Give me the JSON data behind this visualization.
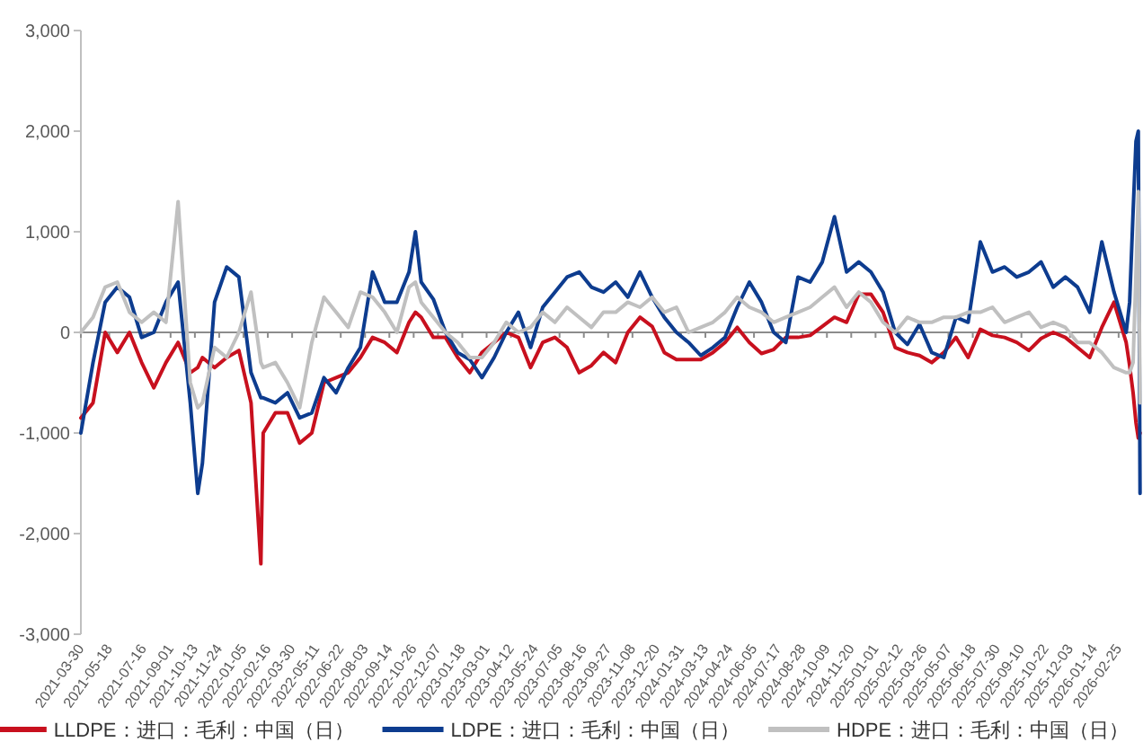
{
  "chart_data": {
    "type": "line",
    "legend": "bottom",
    "xlim": [
      "2021-03-30",
      "2026-04-05"
    ],
    "ylim": [
      -3000,
      3000
    ],
    "yticks": [
      {
        "value": -3000,
        "label": "-3,000"
      },
      {
        "value": -2000,
        "label": "-2,000"
      },
      {
        "value": -1000,
        "label": "-1,000"
      },
      0,
      {
        "value": 1000,
        "label": "1,000"
      },
      {
        "value": 2000,
        "label": "2,000"
      },
      {
        "value": 3000,
        "label": "3,000"
      }
    ],
    "xticks": [
      {
        "value": "2021-03-30",
        "label": "2021-03-30"
      },
      {
        "value": "2021-05-18",
        "label": "2021-05-18"
      },
      {
        "value": "2021-07-16",
        "label": "2021-07-16"
      },
      {
        "value": "2021-09-01",
        "label": "2021-09-01"
      },
      {
        "value": "2021-10-13",
        "label": "2021-10-13"
      },
      {
        "value": "2021-11-24",
        "label": "2021-11-24"
      },
      {
        "value": "2022-01-05",
        "label": "2022-01-05"
      },
      {
        "value": "2022-02-16",
        "label": "2022-02-16"
      },
      {
        "value": "2022-03-30",
        "label": "2022-03-30"
      },
      {
        "value": "2022-05-11",
        "label": "2022-05-11"
      },
      {
        "value": "2022-06-22",
        "label": "2022-06-22"
      },
      {
        "value": "2022-08-03",
        "label": "2022-08-03"
      },
      {
        "value": "2022-09-14",
        "label": "2022-09-14"
      },
      {
        "value": "2022-10-26",
        "label": "2022-10-26"
      },
      {
        "value": "2022-12-07",
        "label": "2022-12-07"
      },
      {
        "value": "2023-01-18",
        "label": "2023-01-18"
      },
      {
        "value": "2023-03-01",
        "label": "2023-03-01"
      },
      {
        "value": "2023-04-12",
        "label": "2023-04-12"
      },
      {
        "value": "2023-05-24",
        "label": "2023-05-24"
      },
      {
        "value": "2023-07-05",
        "label": "2023-07-05"
      },
      {
        "value": "2023-08-16",
        "label": "2023-08-16"
      },
      {
        "value": "2023-09-27",
        "label": "2023-09-27"
      },
      {
        "value": "2023-11-08",
        "label": "2023-11-08"
      },
      {
        "value": "2023-12-20",
        "label": "2023-12-20"
      },
      {
        "value": "2024-01-31",
        "label": "2024-01-31"
      },
      {
        "value": "2024-03-13",
        "label": "2024-03-13"
      },
      {
        "value": "2024-04-24",
        "label": "2024-04-24"
      },
      {
        "value": "2024-06-05",
        "label": "2024-06-05"
      },
      {
        "value": "2024-07-17",
        "label": "2024-07-17"
      },
      {
        "value": "2024-08-28",
        "label": "2024-08-28"
      },
      {
        "value": "2024-10-09",
        "label": "2024-10-09"
      },
      {
        "value": "2024-11-20",
        "label": "2024-11-20"
      },
      {
        "value": "2025-01-01",
        "label": "2025-01-01"
      },
      {
        "value": "2025-02-12",
        "label": "2025-02-12"
      },
      {
        "value": "2025-03-26",
        "label": "2025-03-26"
      },
      {
        "value": "2025-05-07",
        "label": "2025-05-07"
      },
      {
        "value": "2025-06-18",
        "label": "2025-06-18"
      },
      {
        "value": "2025-07-30",
        "label": "2025-07-30"
      },
      {
        "value": "2025-09-10",
        "label": "2025-09-10"
      },
      {
        "value": "2025-10-22",
        "label": "2025-10-22"
      },
      {
        "value": "2025-12-03",
        "label": "2025-12-03"
      },
      {
        "value": "2026-01-14",
        "label": "2026-01-14"
      },
      {
        "value": "2026-02-25",
        "label": "2026-02-25"
      }
    ],
    "x": [
      "2021-03-30",
      "2021-04-20",
      "2021-05-11",
      "2021-06-01",
      "2021-06-22",
      "2021-07-13",
      "2021-08-03",
      "2021-08-24",
      "2021-09-14",
      "2021-10-05",
      "2021-10-18",
      "2021-10-26",
      "2021-11-16",
      "2021-12-07",
      "2021-12-28",
      "2022-01-18",
      "2022-02-04",
      "2022-02-08",
      "2022-03-01",
      "2022-03-22",
      "2022-04-12",
      "2022-05-03",
      "2022-05-24",
      "2022-06-14",
      "2022-07-05",
      "2022-07-26",
      "2022-08-16",
      "2022-09-06",
      "2022-09-27",
      "2022-10-18",
      "2022-10-29",
      "2022-11-08",
      "2022-11-29",
      "2022-12-20",
      "2023-01-10",
      "2023-01-31",
      "2023-02-21",
      "2023-03-14",
      "2023-04-04",
      "2023-04-25",
      "2023-05-16",
      "2023-06-06",
      "2023-06-27",
      "2023-07-18",
      "2023-08-08",
      "2023-08-29",
      "2023-09-19",
      "2023-10-10",
      "2023-10-31",
      "2023-11-21",
      "2023-12-12",
      "2024-01-02",
      "2024-01-23",
      "2024-02-13",
      "2024-03-05",
      "2024-03-26",
      "2024-04-16",
      "2024-05-07",
      "2024-05-28",
      "2024-06-18",
      "2024-07-09",
      "2024-07-30",
      "2024-08-20",
      "2024-09-10",
      "2024-10-01",
      "2024-10-22",
      "2024-11-12",
      "2024-12-03",
      "2024-12-24",
      "2025-01-14",
      "2025-02-04",
      "2025-02-25",
      "2025-03-18",
      "2025-04-08",
      "2025-04-29",
      "2025-05-20",
      "2025-06-10",
      "2025-07-01",
      "2025-07-22",
      "2025-08-12",
      "2025-09-02",
      "2025-09-23",
      "2025-10-14",
      "2025-11-04",
      "2025-11-25",
      "2025-12-16",
      "2026-01-06",
      "2026-01-27",
      "2026-02-17",
      "2026-03-10",
      "2026-03-16",
      "2026-03-22",
      "2026-03-27",
      "2026-03-31",
      "2026-04-03"
    ],
    "series": [
      {
        "name": "LLDPE：进口：毛利：中国（日）",
        "color": "#c8101e",
        "values": [
          -850,
          -700,
          0,
          -200,
          0,
          -300,
          -550,
          -300,
          -100,
          -400,
          -350,
          -250,
          -350,
          -250,
          -180,
          -700,
          -2300,
          -1000,
          -800,
          -800,
          -1100,
          -1000,
          -500,
          -450,
          -400,
          -250,
          -50,
          -100,
          -200,
          100,
          200,
          150,
          -50,
          -50,
          -250,
          -400,
          -200,
          -100,
          0,
          -50,
          -350,
          -100,
          -50,
          -150,
          -400,
          -330,
          -200,
          -300,
          0,
          150,
          60,
          -200,
          -270,
          -270,
          -270,
          -200,
          -100,
          50,
          -100,
          -210,
          -170,
          -50,
          -50,
          -30,
          60,
          150,
          100,
          380,
          380,
          200,
          -150,
          -200,
          -230,
          -300,
          -200,
          -50,
          -250,
          30,
          -30,
          -50,
          -100,
          -180,
          -60,
          0,
          -50,
          -150,
          -250,
          50,
          300,
          -100,
          -330,
          -600,
          -900,
          -1050,
          -1000
        ]
      },
      {
        "name": "LDPE：进口：毛利：中国（日）",
        "color": "#0d3c8f",
        "values": [
          -1000,
          -300,
          300,
          450,
          350,
          -50,
          0,
          300,
          500,
          -700,
          -1600,
          -1300,
          300,
          650,
          550,
          -400,
          -650,
          -650,
          -700,
          -600,
          -850,
          -800,
          -450,
          -600,
          -350,
          -150,
          600,
          300,
          300,
          600,
          1000,
          500,
          330,
          0,
          -200,
          -270,
          -450,
          -250,
          0,
          200,
          -150,
          250,
          400,
          550,
          600,
          450,
          400,
          500,
          350,
          600,
          350,
          150,
          0,
          -100,
          -230,
          -150,
          -50,
          250,
          500,
          300,
          0,
          -100,
          550,
          500,
          700,
          1150,
          600,
          700,
          600,
          400,
          0,
          -120,
          80,
          -200,
          -250,
          150,
          100,
          900,
          600,
          650,
          550,
          600,
          700,
          450,
          550,
          450,
          200,
          900,
          400,
          0,
          300,
          1200,
          1900,
          2000,
          -1600
        ]
      },
      {
        "name": "HDPE：进口：毛利：中国（日）",
        "color": "#c0c0c0",
        "values": [
          0,
          150,
          450,
          500,
          200,
          100,
          200,
          100,
          1300,
          -500,
          -750,
          -700,
          -150,
          -250,
          0,
          400,
          -300,
          -350,
          -300,
          -500,
          -750,
          -100,
          350,
          200,
          50,
          400,
          350,
          200,
          0,
          450,
          500,
          300,
          150,
          0,
          -100,
          -250,
          -250,
          -100,
          100,
          0,
          50,
          200,
          100,
          250,
          150,
          50,
          200,
          200,
          300,
          250,
          350,
          200,
          250,
          0,
          50,
          100,
          200,
          350,
          250,
          200,
          100,
          150,
          200,
          250,
          350,
          450,
          250,
          400,
          300,
          100,
          0,
          150,
          100,
          100,
          150,
          150,
          200,
          200,
          250,
          100,
          150,
          200,
          50,
          100,
          50,
          -100,
          -100,
          -200,
          -350,
          -400,
          -400,
          -300,
          600,
          1400,
          -700
        ]
      }
    ]
  }
}
